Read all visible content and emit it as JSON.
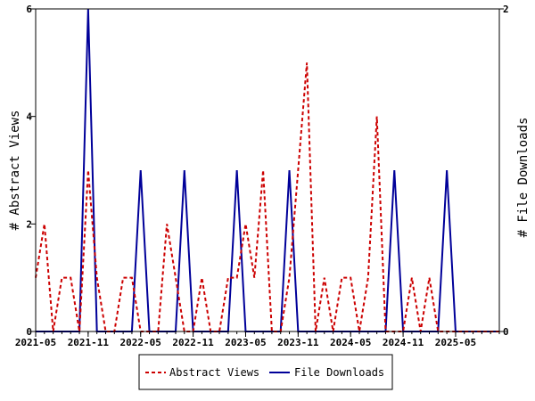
{
  "chart_data": {
    "type": "line",
    "title": "",
    "xlabel": "",
    "ylabel_left": "# Abstract Views",
    "ylabel_right": "# File Downloads",
    "ylim_left": [
      0,
      6
    ],
    "ylim_right": [
      0,
      2
    ],
    "yticks_left": [
      "0",
      "2",
      "4",
      "6"
    ],
    "yticks_right": [
      "0",
      "2"
    ],
    "xticks": [
      "2021-05",
      "2021-11",
      "2022-05",
      "2022-11",
      "2023-05",
      "2023-11",
      "2024-05",
      "2024-11",
      "2025-05"
    ],
    "x": [
      "2021-05",
      "2021-06",
      "2021-07",
      "2021-08",
      "2021-09",
      "2021-10",
      "2021-11",
      "2021-12",
      "2022-01",
      "2022-02",
      "2022-03",
      "2022-04",
      "2022-05",
      "2022-06",
      "2022-07",
      "2022-08",
      "2022-09",
      "2022-10",
      "2022-11",
      "2022-12",
      "2023-01",
      "2023-02",
      "2023-03",
      "2023-04",
      "2023-05",
      "2023-06",
      "2023-07",
      "2023-08",
      "2023-09",
      "2023-10",
      "2023-11",
      "2023-12",
      "2024-01",
      "2024-02",
      "2024-03",
      "2024-04",
      "2024-05",
      "2024-06",
      "2024-07",
      "2024-08",
      "2024-09",
      "2024-10",
      "2024-11",
      "2024-12",
      "2025-01",
      "2025-02",
      "2025-03",
      "2025-04",
      "2025-05",
      "2025-06",
      "2025-07",
      "2025-08",
      "2025-09",
      "2025-10"
    ],
    "legend_position": "bottom",
    "grid": false,
    "series": [
      {
        "name": "Abstract Views",
        "axis": "left",
        "color": "#cc0000",
        "style": "dashed",
        "values": [
          1,
          2,
          0,
          1,
          1,
          0,
          3,
          1,
          0,
          0,
          1,
          1,
          0,
          0,
          0,
          2,
          1,
          0,
          0,
          1,
          0,
          0,
          1,
          1,
          2,
          1,
          3,
          0,
          0,
          1,
          3,
          5,
          0,
          1,
          0,
          1,
          1,
          0,
          1,
          4,
          0,
          0,
          0,
          1,
          0,
          1,
          0,
          0,
          0,
          0,
          0,
          0,
          0,
          0
        ]
      },
      {
        "name": "File Downloads",
        "axis": "right",
        "color": "#000099",
        "style": "solid",
        "values": [
          0,
          0,
          0,
          0,
          0,
          0,
          2,
          0,
          0,
          0,
          0,
          0,
          1,
          0,
          0,
          0,
          0,
          1,
          0,
          0,
          0,
          0,
          0,
          1,
          0,
          0,
          0,
          0,
          0,
          1,
          0,
          0,
          0,
          0,
          0,
          0,
          0,
          0,
          0,
          0,
          0,
          1,
          0,
          0,
          0,
          0,
          0,
          1,
          0,
          0,
          0,
          0,
          0,
          0
        ]
      }
    ]
  }
}
